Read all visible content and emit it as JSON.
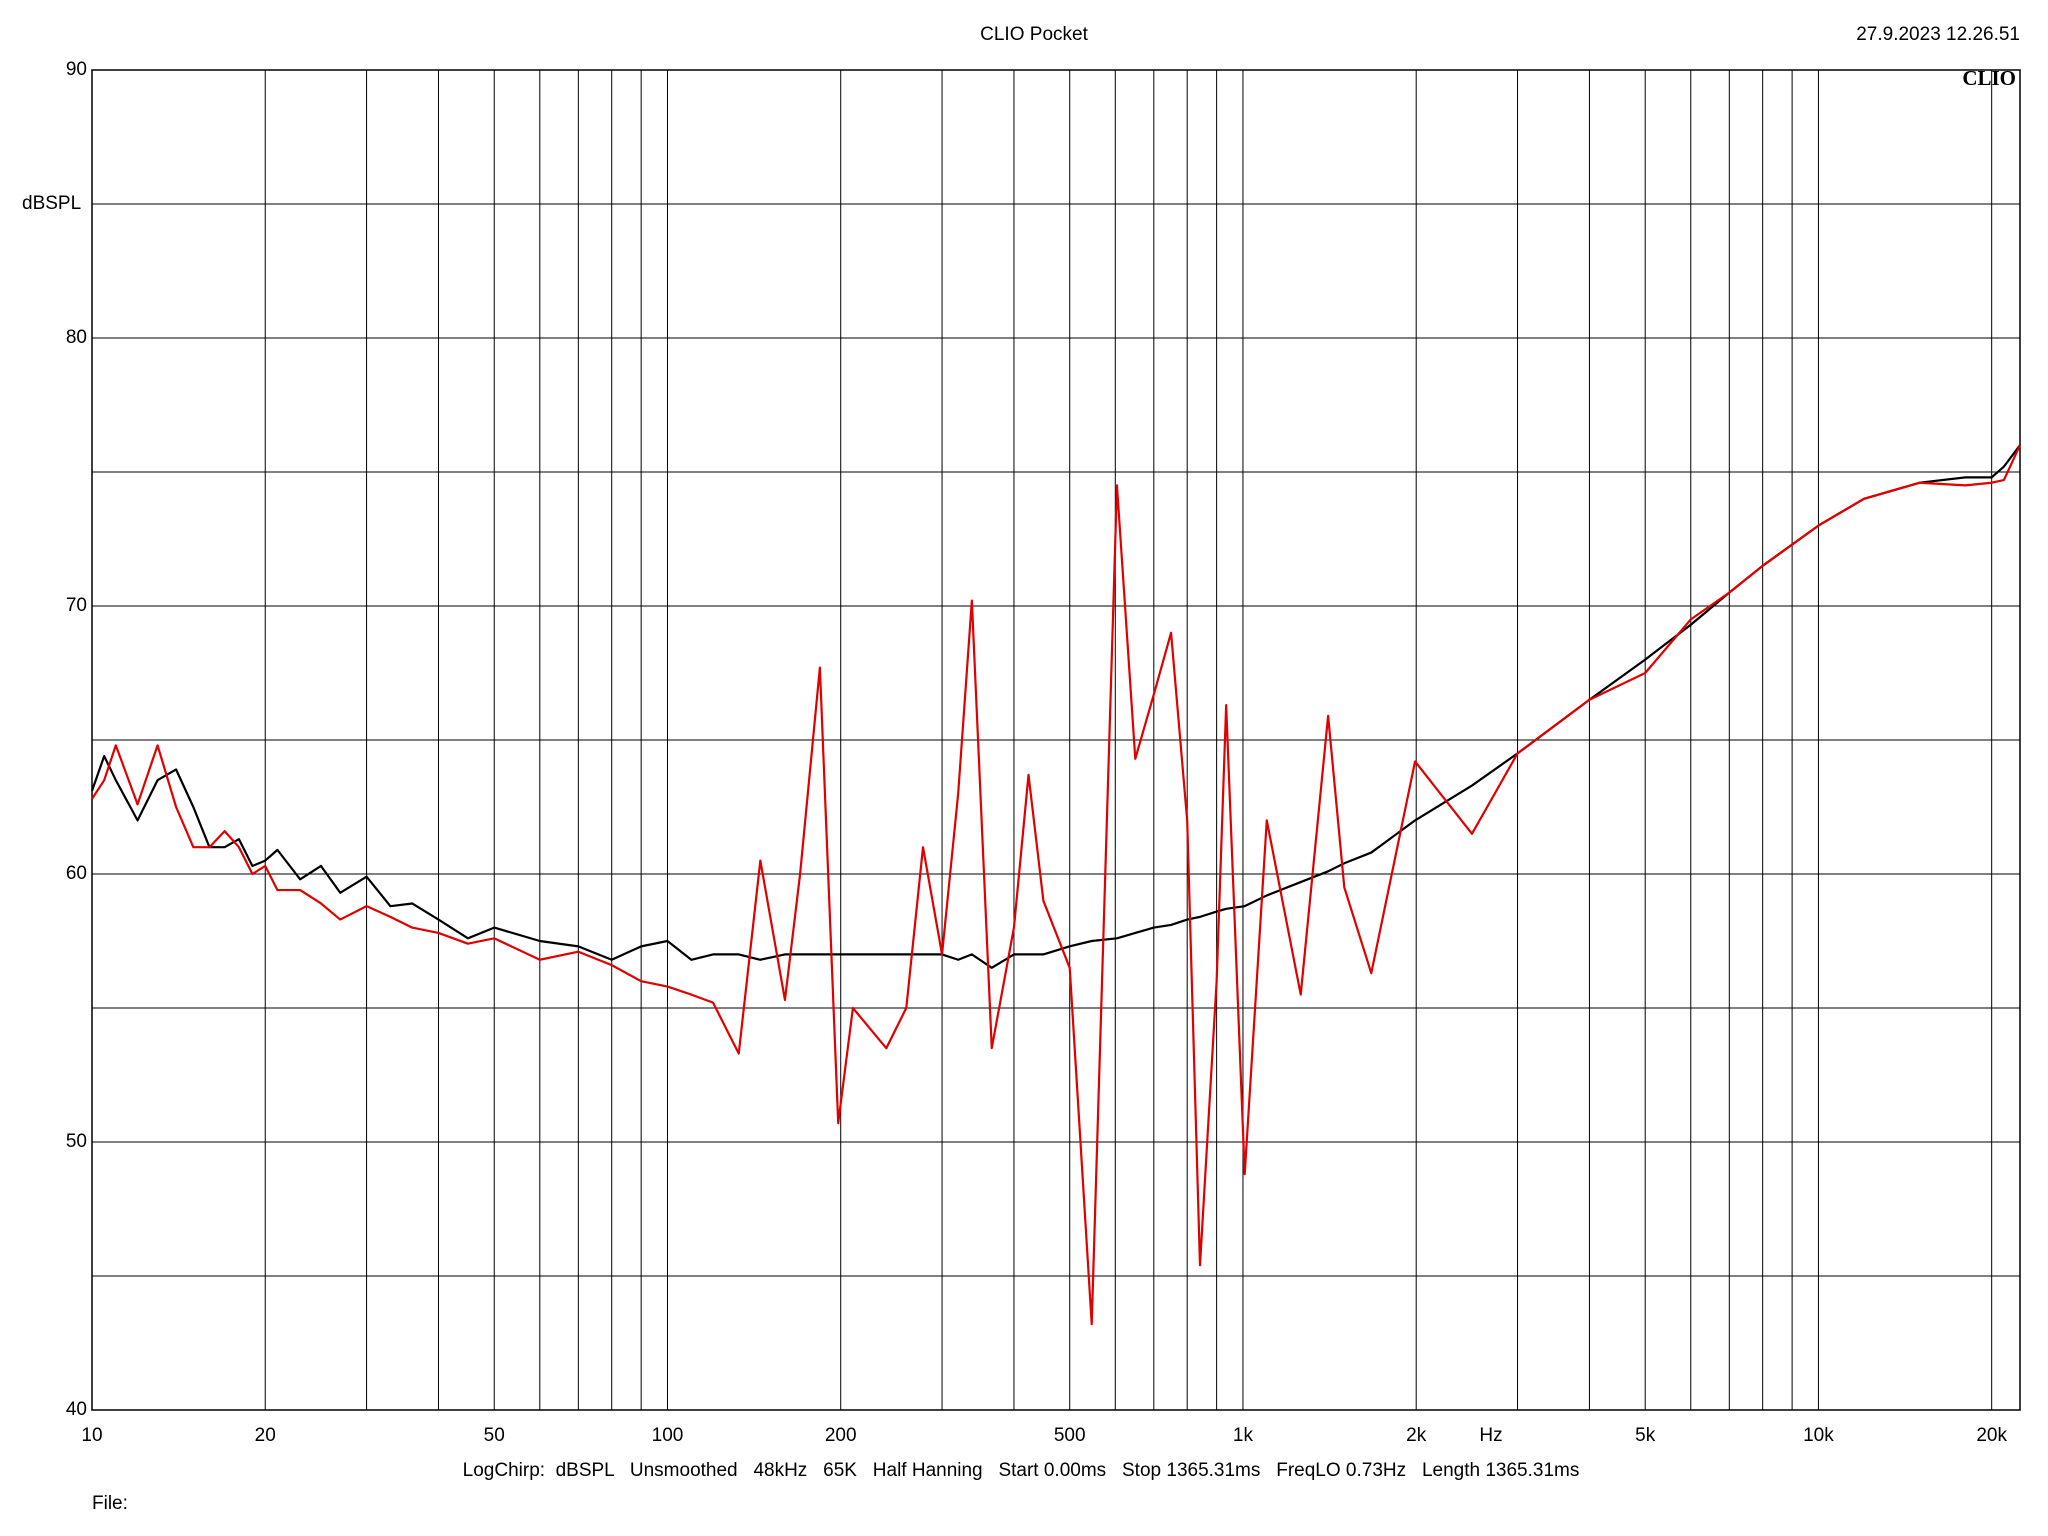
{
  "chart_data": {
    "type": "line",
    "title": "CLIO Pocket",
    "timestamp": "27.9.2023 12.26.51",
    "logo": "CLIO",
    "ylabel": "dBSPL",
    "xunit": "Hz",
    "footer": "LogChirp:  dBSPL   Unsmoothed   48kHz   65K   Half Hanning   Start 0.00ms   Stop 1365.31ms   FreqLO 0.73Hz   Length 1365.31ms",
    "file_label": "File:",
    "xscale": "log",
    "grid": true,
    "xlim": [
      10,
      22400
    ],
    "ylim": [
      40,
      90
    ],
    "xticks": [
      10,
      20,
      50,
      100,
      200,
      500,
      {
        "value": 1000,
        "label": "1k"
      },
      {
        "value": 2000,
        "label": "2k"
      },
      {
        "value": 5000,
        "label": "5k"
      },
      {
        "value": 10000,
        "label": "10k"
      },
      {
        "value": 20000,
        "label": "20k"
      }
    ],
    "xminorticks": [
      30,
      40,
      60,
      70,
      80,
      90,
      300,
      400,
      600,
      700,
      800,
      900,
      3000,
      4000,
      6000,
      7000,
      8000,
      9000
    ],
    "yticks": [
      40,
      50,
      60,
      70,
      80,
      90
    ],
    "yminorticks": [
      45,
      55,
      65,
      75,
      85
    ],
    "x": [
      10,
      10.5,
      11,
      12,
      13,
      14,
      15,
      16,
      17,
      18,
      19,
      20,
      21,
      23,
      25,
      27,
      30,
      33,
      36,
      40,
      45,
      50,
      60,
      70,
      80,
      90,
      100,
      110,
      120,
      133,
      145,
      160,
      170,
      184,
      198,
      210,
      240,
      260,
      278,
      300,
      320,
      338,
      366,
      400,
      424,
      450,
      500,
      546,
      604,
      650,
      700,
      750,
      800,
      842,
      900,
      935,
      1007,
      1100,
      1260,
      1406,
      1500,
      1671,
      1991,
      2500,
      3000,
      4000,
      5000,
      6000,
      7000,
      8000,
      10000,
      12000,
      15000,
      18000,
      20000,
      21000,
      22400
    ],
    "series": [
      {
        "color": "#000000",
        "values": [
          63.1,
          64.4,
          63.5,
          62,
          63.5,
          63.9,
          62.5,
          61,
          61,
          61.3,
          60.3,
          60.5,
          60.9,
          59.8,
          60.3,
          59.3,
          59.9,
          58.8,
          58.9,
          58.3,
          57.6,
          58,
          57.5,
          57.3,
          56.8,
          57.3,
          57.5,
          56.8,
          57,
          57,
          56.8,
          57,
          57,
          57,
          57,
          57,
          57,
          57,
          57,
          57,
          56.8,
          57,
          56.5,
          57,
          57,
          57,
          57.3,
          57.5,
          57.6,
          57.8,
          58,
          58.1,
          58.3,
          58.4,
          58.6,
          58.7,
          58.8,
          59.2,
          59.7,
          60.1,
          60.4,
          60.8,
          62,
          63.3,
          64.5,
          66.5,
          68,
          69.3,
          70.5,
          71.5,
          73,
          74,
          74.6,
          74.8,
          74.8,
          75.2,
          76
        ]
      },
      {
        "color": "#e00000",
        "values": [
          62.8,
          63.5,
          64.8,
          62.6,
          64.8,
          62.5,
          61,
          61,
          61.6,
          61,
          60,
          60.3,
          59.4,
          59.4,
          58.9,
          58.3,
          58.8,
          58.4,
          58,
          57.8,
          57.4,
          57.6,
          56.8,
          57.1,
          56.6,
          56,
          55.8,
          55.5,
          55.2,
          53.3,
          60.5,
          55.3,
          60,
          67.7,
          50.7,
          55,
          53.5,
          55,
          61,
          57,
          63,
          70.2,
          53.5,
          58,
          63.7,
          59,
          56.5,
          43.2,
          74.5,
          64.3,
          66.7,
          69,
          62,
          45.4,
          56,
          66.3,
          48.8,
          62,
          55.5,
          65.9,
          59.5,
          56.3,
          64.2,
          61.5,
          64.5,
          66.5,
          67.5,
          69.5,
          70.5,
          71.5,
          73,
          74,
          74.6,
          74.5,
          74.6,
          74.7,
          76
        ]
      }
    ]
  }
}
